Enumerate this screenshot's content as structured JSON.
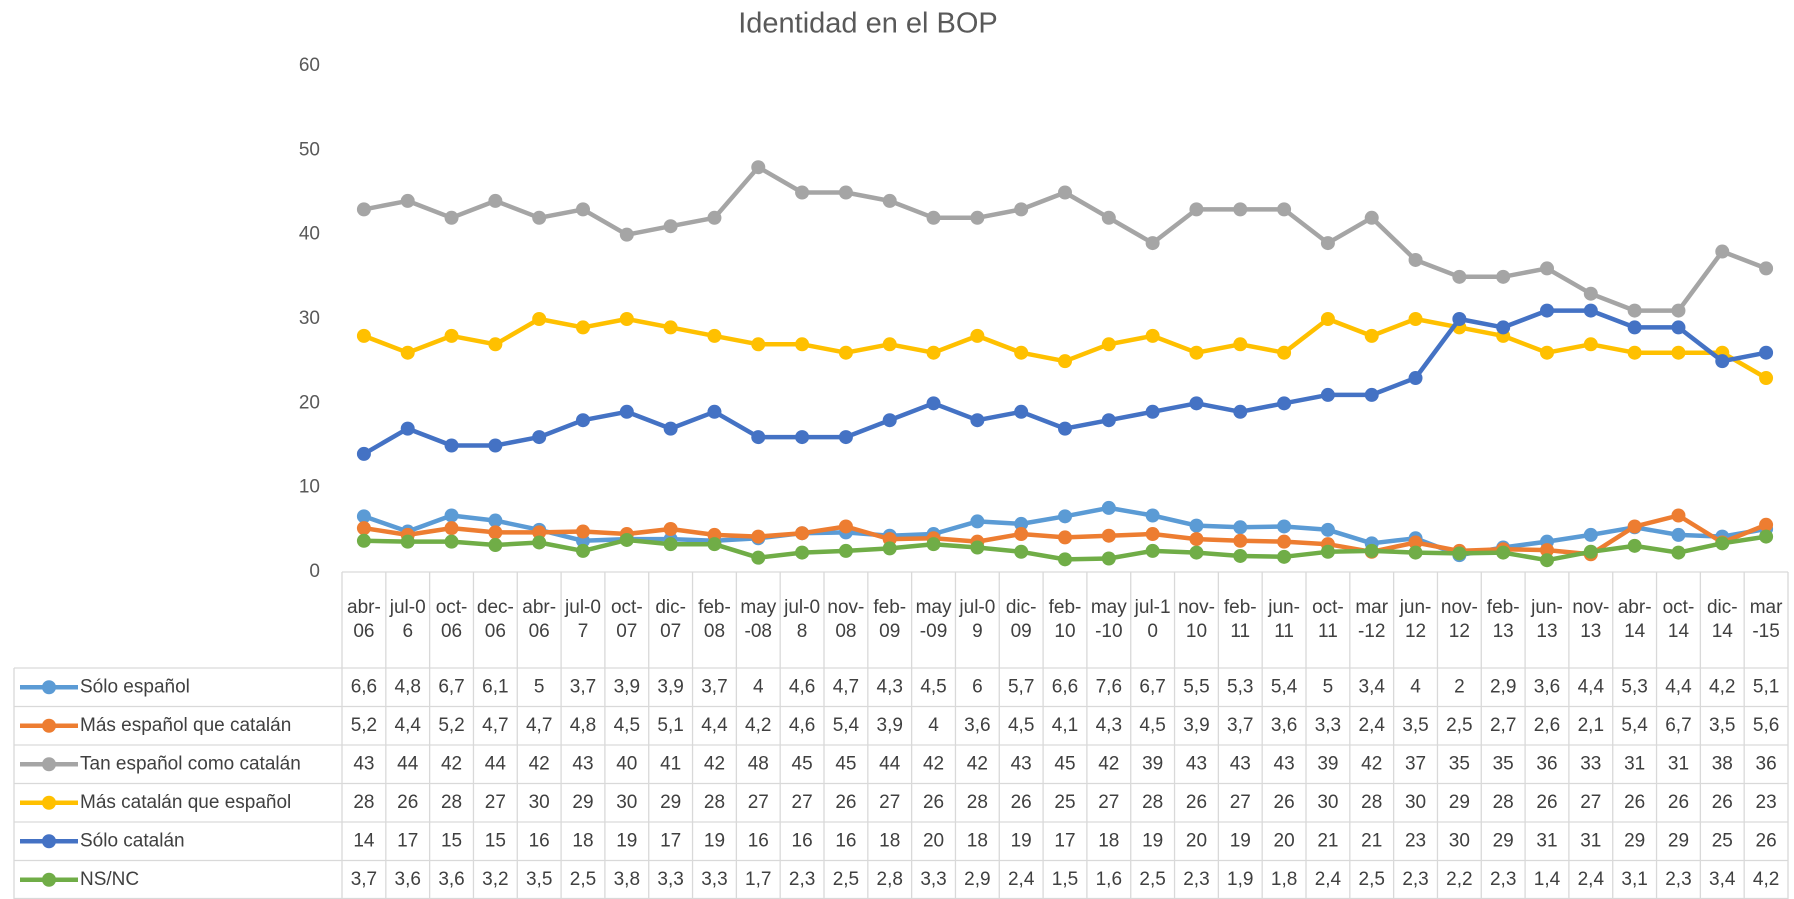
{
  "chart_data": {
    "type": "line",
    "title": "Identidad en el BOP",
    "categories": [
      "abr-06",
      "jul-06",
      "oct-06",
      "dec-06",
      "abr-06",
      "jul-07",
      "oct-07",
      "dic-07",
      "feb-08",
      "may-08",
      "jul-08",
      "nov-08",
      "feb-09",
      "may-09",
      "jul-09",
      "dic-09",
      "feb-10",
      "may-10",
      "jul-10",
      "nov-10",
      "feb-11",
      "jun-11",
      "oct-11",
      "mar-12",
      "jun-12",
      "nov-12",
      "feb-13",
      "jun-13",
      "nov-13",
      "abr-14",
      "oct-14",
      "dic-14",
      "mar-15"
    ],
    "series": [
      {
        "name": "Sólo español",
        "color": "#5b9bd5",
        "values": [
          6.6,
          4.8,
          6.7,
          6.1,
          5,
          3.7,
          3.9,
          3.9,
          3.7,
          4,
          4.6,
          4.7,
          4.3,
          4.5,
          6,
          5.7,
          6.6,
          7.6,
          6.7,
          5.5,
          5.3,
          5.4,
          5,
          3.4,
          4,
          2,
          2.9,
          3.6,
          4.4,
          5.3,
          4.4,
          4.2,
          5.1
        ],
        "value_labels": [
          "6,6",
          "4,8",
          "6,7",
          "6,1",
          "5",
          "3,7",
          "3,9",
          "3,9",
          "3,7",
          "4",
          "4,6",
          "4,7",
          "4,3",
          "4,5",
          "6",
          "5,7",
          "6,6",
          "7,6",
          "6,7",
          "5,5",
          "5,3",
          "5,4",
          "5",
          "3,4",
          "4",
          "2",
          "2,9",
          "3,6",
          "4,4",
          "5,3",
          "4,4",
          "4,2",
          "5,1"
        ]
      },
      {
        "name": "Más español que catalán",
        "color": "#ed7d31",
        "values": [
          5.2,
          4.4,
          5.2,
          4.7,
          4.7,
          4.8,
          4.5,
          5.1,
          4.4,
          4.2,
          4.6,
          5.4,
          3.9,
          4,
          3.6,
          4.5,
          4.1,
          4.3,
          4.5,
          3.9,
          3.7,
          3.6,
          3.3,
          2.4,
          3.5,
          2.5,
          2.7,
          2.6,
          2.1,
          5.4,
          6.7,
          3.5,
          5.6
        ],
        "value_labels": [
          "5,2",
          "4,4",
          "5,2",
          "4,7",
          "4,7",
          "4,8",
          "4,5",
          "5,1",
          "4,4",
          "4,2",
          "4,6",
          "5,4",
          "3,9",
          "4",
          "3,6",
          "4,5",
          "4,1",
          "4,3",
          "4,5",
          "3,9",
          "3,7",
          "3,6",
          "3,3",
          "2,4",
          "3,5",
          "2,5",
          "2,7",
          "2,6",
          "2,1",
          "5,4",
          "6,7",
          "3,5",
          "5,6"
        ]
      },
      {
        "name": "Tan español como catalán",
        "color": "#a5a5a5",
        "values": [
          43,
          44,
          42,
          44,
          42,
          43,
          40,
          41,
          42,
          48,
          45,
          45,
          44,
          42,
          42,
          43,
          45,
          42,
          39,
          43,
          43,
          43,
          39,
          42,
          37,
          35,
          35,
          36,
          33,
          31,
          31,
          38,
          36
        ]
      },
      {
        "name": "Más catalán que español",
        "color": "#ffc000",
        "values": [
          28,
          26,
          28,
          27,
          30,
          29,
          30,
          29,
          28,
          27,
          27,
          26,
          27,
          26,
          28,
          26,
          25,
          27,
          28,
          26,
          27,
          26,
          30,
          28,
          30,
          29,
          28,
          26,
          27,
          26,
          26,
          26,
          23
        ]
      },
      {
        "name": "Sólo catalán",
        "color": "#4472c4",
        "values": [
          14,
          17,
          15,
          15,
          16,
          18,
          19,
          17,
          19,
          16,
          16,
          16,
          18,
          20,
          18,
          19,
          17,
          18,
          19,
          20,
          19,
          20,
          21,
          21,
          23,
          30,
          29,
          31,
          31,
          29,
          29,
          25,
          26
        ]
      },
      {
        "name": "NS/NC",
        "color": "#70ad47",
        "values": [
          3.7,
          3.6,
          3.6,
          3.2,
          3.5,
          2.5,
          3.8,
          3.3,
          3.3,
          1.7,
          2.3,
          2.5,
          2.8,
          3.3,
          2.9,
          2.4,
          1.5,
          1.6,
          2.5,
          2.3,
          1.9,
          1.8,
          2.4,
          2.5,
          2.3,
          2.2,
          2.3,
          1.4,
          2.4,
          3.1,
          2.3,
          3.4,
          4.2
        ],
        "value_labels": [
          "3,7",
          "3,6",
          "3,6",
          "3,2",
          "3,5",
          "2,5",
          "3,8",
          "3,3",
          "3,3",
          "1,7",
          "2,3",
          "2,5",
          "2,8",
          "3,3",
          "2,9",
          "2,4",
          "1,5",
          "1,6",
          "2,5",
          "2,3",
          "1,9",
          "1,8",
          "2,4",
          "2,5",
          "2,3",
          "2,2",
          "2,3",
          "1,4",
          "2,4",
          "3,1",
          "2,3",
          "3,4",
          "4,2"
        ]
      }
    ],
    "ylim": [
      0,
      60
    ],
    "yticks": [
      0,
      10,
      20,
      30,
      40,
      50,
      60
    ],
    "grid": false,
    "legend": "table"
  }
}
